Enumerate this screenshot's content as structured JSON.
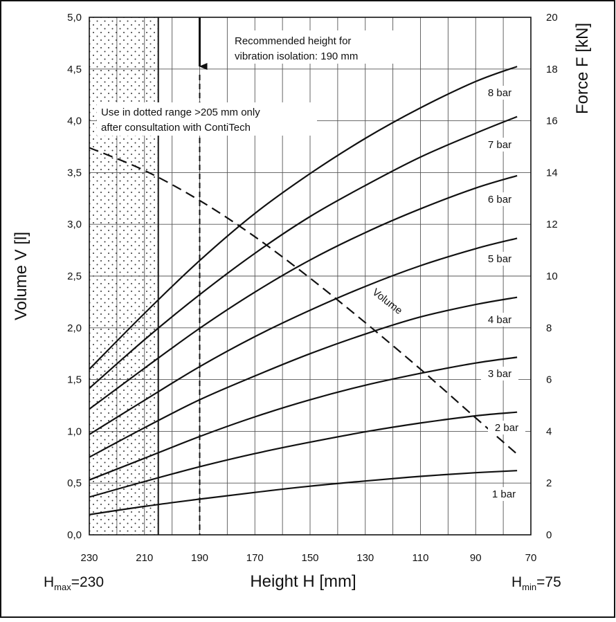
{
  "chart_data": {
    "type": "line",
    "x_axis": {
      "label": "Height H [mm]",
      "range": [
        230,
        70
      ],
      "ticks": [
        230,
        210,
        190,
        170,
        150,
        130,
        110,
        90,
        70
      ],
      "minor_step": 10
    },
    "y_left": {
      "label": "Volume V [l]",
      "range": [
        0,
        5.0
      ],
      "ticks": [
        "0,0",
        "0,5",
        "1,0",
        "1,5",
        "2,0",
        "2,5",
        "3,0",
        "3,5",
        "4,0",
        "4,5",
        "5,0"
      ]
    },
    "y_right": {
      "label": "Force F [kN]",
      "range": [
        0,
        20
      ],
      "ticks": [
        "0",
        "2",
        "4",
        "6",
        "8",
        "10",
        "12",
        "14",
        "16",
        "18",
        "20"
      ]
    },
    "grid": true,
    "series": [
      {
        "name": "1 bar",
        "axis": "force",
        "x": [
          230,
          210,
          190,
          170,
          150,
          130,
          110,
          90,
          75
        ],
        "y": [
          0.78,
          1.1,
          1.38,
          1.64,
          1.88,
          2.08,
          2.26,
          2.4,
          2.48
        ]
      },
      {
        "name": "2 bar",
        "axis": "force",
        "x": [
          230,
          210,
          190,
          170,
          150,
          130,
          110,
          90,
          75
        ],
        "y": [
          1.46,
          2.06,
          2.63,
          3.14,
          3.58,
          3.98,
          4.32,
          4.6,
          4.74
        ]
      },
      {
        "name": "3 bar",
        "axis": "force",
        "x": [
          230,
          210,
          190,
          170,
          150,
          130,
          110,
          90,
          75
        ],
        "y": [
          2.12,
          2.96,
          3.8,
          4.56,
          5.22,
          5.78,
          6.24,
          6.64,
          6.86
        ]
      },
      {
        "name": "4 bar",
        "axis": "force",
        "x": [
          230,
          210,
          190,
          170,
          150,
          130,
          110,
          90,
          75
        ],
        "y": [
          3.0,
          4.14,
          5.22,
          6.14,
          7.0,
          7.76,
          8.42,
          8.9,
          9.18
        ]
      },
      {
        "name": "5 bar",
        "axis": "force",
        "x": [
          230,
          210,
          190,
          170,
          150,
          130,
          110,
          90,
          75
        ],
        "y": [
          3.88,
          5.2,
          6.5,
          7.66,
          8.68,
          9.6,
          10.4,
          11.06,
          11.46
        ]
      },
      {
        "name": "6 bar",
        "axis": "force",
        "x": [
          230,
          210,
          190,
          170,
          150,
          130,
          110,
          90,
          75
        ],
        "y": [
          4.86,
          6.44,
          7.98,
          9.38,
          10.62,
          11.68,
          12.6,
          13.4,
          13.88
        ]
      },
      {
        "name": "7 bar",
        "axis": "force",
        "x": [
          230,
          210,
          190,
          170,
          150,
          130,
          110,
          90,
          75
        ],
        "y": [
          5.66,
          7.54,
          9.28,
          10.88,
          12.3,
          13.5,
          14.6,
          15.52,
          16.16
        ]
      },
      {
        "name": "8 bar",
        "axis": "force",
        "x": [
          230,
          210,
          190,
          170,
          150,
          130,
          110,
          90,
          75
        ],
        "y": [
          6.4,
          8.56,
          10.6,
          12.42,
          13.96,
          15.32,
          16.5,
          17.52,
          18.1
        ]
      },
      {
        "name": "Volume",
        "axis": "volume",
        "dashed": true,
        "x": [
          230,
          210,
          190,
          170,
          150,
          130,
          110,
          90,
          75
        ],
        "y": [
          3.74,
          3.52,
          3.23,
          2.88,
          2.48,
          2.05,
          1.6,
          1.13,
          0.78
        ]
      }
    ],
    "annotations": {
      "dotted_range": {
        "from": 230,
        "to": 205
      },
      "recommended_height": 190,
      "recommended_text_1": "Recommended height for",
      "recommended_text_2": "vibration isolation: 190 mm",
      "dotted_text_1": "Use in dotted range >205 mm only",
      "dotted_text_2": "after consultation with ContiTech"
    },
    "footer": {
      "hmax_main": "H",
      "hmax_sub": "max",
      "hmax_value": "=230",
      "hmin_main": "H",
      "hmin_sub": "min",
      "hmin_value": "=75"
    }
  }
}
